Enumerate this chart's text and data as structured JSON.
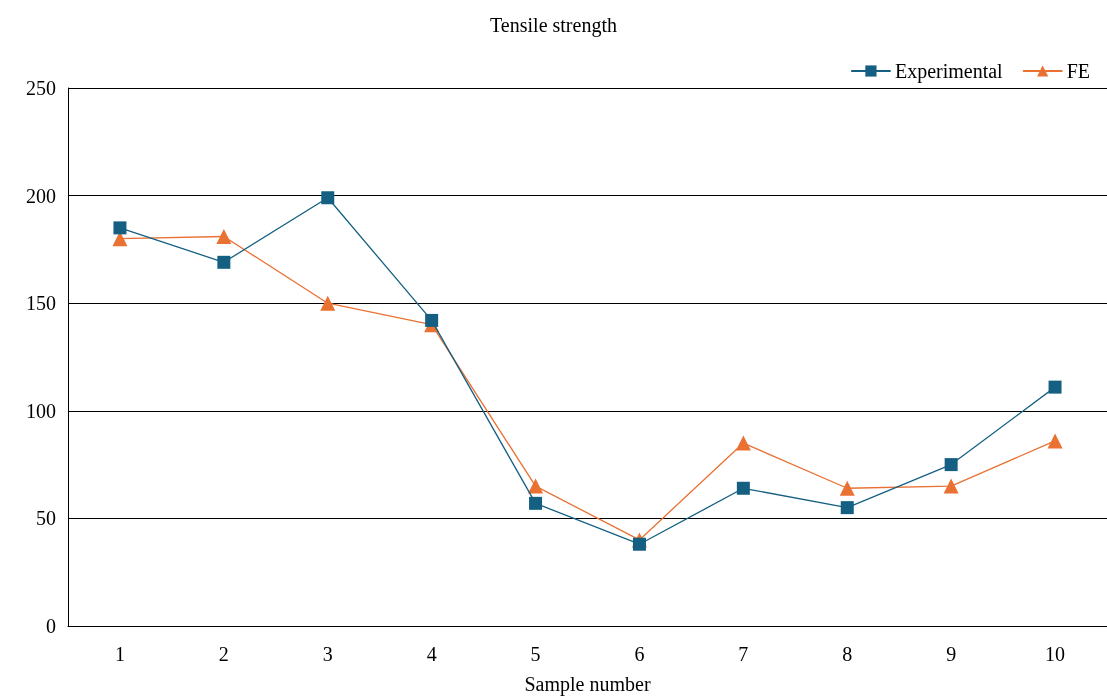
{
  "chart_data": {
    "type": "line",
    "title": "Tensile strength",
    "xlabel": "Sample number",
    "categories": [
      "1",
      "2",
      "3",
      "4",
      "5",
      "6",
      "7",
      "8",
      "9",
      "10"
    ],
    "series": [
      {
        "name": "Experimental",
        "color": "#156082",
        "marker": "square",
        "values": [
          185,
          169,
          199,
          142,
          57,
          38,
          64,
          55,
          75,
          111
        ]
      },
      {
        "name": "FE",
        "color": "#e97132",
        "marker": "triangle",
        "values": [
          180,
          181,
          150,
          140,
          65,
          40,
          85,
          64,
          65,
          86
        ]
      }
    ],
    "ylim": [
      0,
      250
    ],
    "yticks": [
      0,
      50,
      100,
      150,
      200,
      250
    ],
    "grid": "y",
    "legend": "top right",
    "line_style": "solid"
  }
}
